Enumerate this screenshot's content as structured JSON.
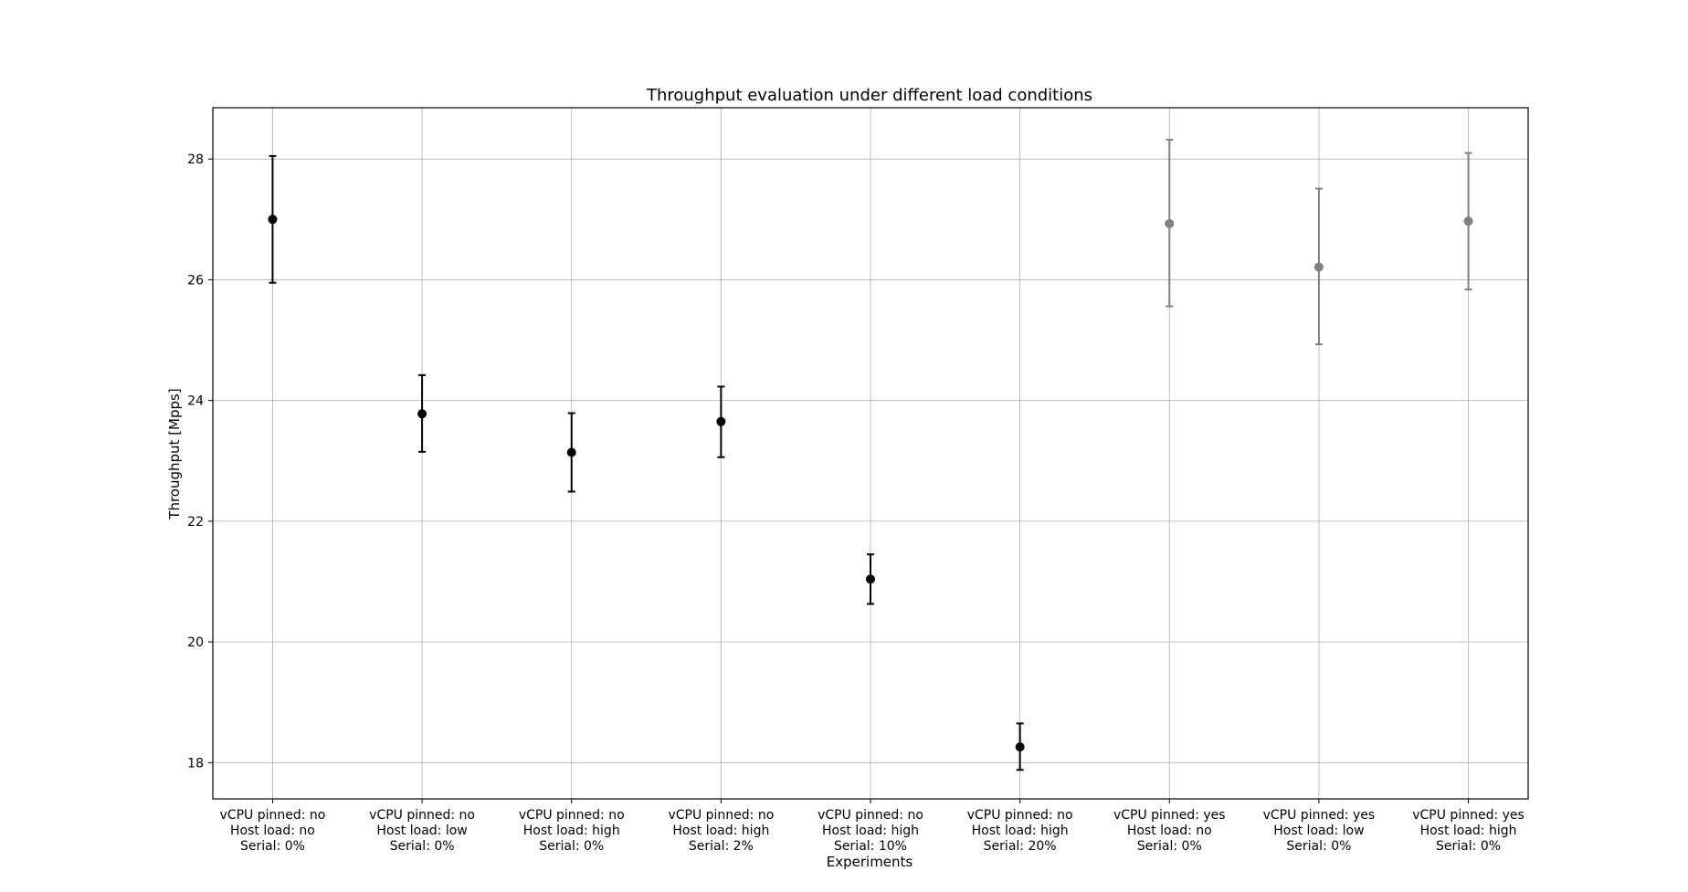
{
  "chart_data": {
    "type": "scatter",
    "title": "Throughput evaluation under different load conditions",
    "xlabel": "Experiments",
    "ylabel": "Throughput [Mpps]",
    "ylim": [
      17.4,
      28.85
    ],
    "yticks": [
      18,
      20,
      22,
      24,
      26,
      28
    ],
    "grid": true,
    "categories": [
      [
        "vCPU pinned: no",
        "Host load: no",
        "Serial: 0%"
      ],
      [
        "vCPU pinned: no",
        "Host load: low",
        "Serial: 0%"
      ],
      [
        "vCPU pinned: no",
        "Host load: high",
        "Serial: 0%"
      ],
      [
        "vCPU pinned: no",
        "Host load: high",
        "Serial: 2%"
      ],
      [
        "vCPU pinned: no",
        "Host load: high",
        "Serial: 10%"
      ],
      [
        "vCPU pinned: no",
        "Host load: high",
        "Serial: 20%"
      ],
      [
        "vCPU pinned: yes",
        "Host load: no",
        "Serial: 0%"
      ],
      [
        "vCPU pinned: yes",
        "Host load: low",
        "Serial: 0%"
      ],
      [
        "vCPU pinned: yes",
        "Host load: high",
        "Serial: 0%"
      ]
    ],
    "points": [
      {
        "value": 27.0,
        "lower": 25.95,
        "upper": 28.05,
        "color": "#000000"
      },
      {
        "value": 23.78,
        "lower": 23.15,
        "upper": 24.42,
        "color": "#000000"
      },
      {
        "value": 23.14,
        "lower": 22.49,
        "upper": 23.79,
        "color": "#000000"
      },
      {
        "value": 23.65,
        "lower": 23.06,
        "upper": 24.23,
        "color": "#000000"
      },
      {
        "value": 21.04,
        "lower": 20.63,
        "upper": 21.45,
        "color": "#000000"
      },
      {
        "value": 18.26,
        "lower": 17.88,
        "upper": 18.65,
        "color": "#000000"
      },
      {
        "value": 26.93,
        "lower": 25.56,
        "upper": 28.32,
        "color": "#808080"
      },
      {
        "value": 26.21,
        "lower": 24.93,
        "upper": 27.51,
        "color": "#808080"
      },
      {
        "value": 26.97,
        "lower": 25.84,
        "upper": 28.1,
        "color": "#808080"
      }
    ]
  }
}
